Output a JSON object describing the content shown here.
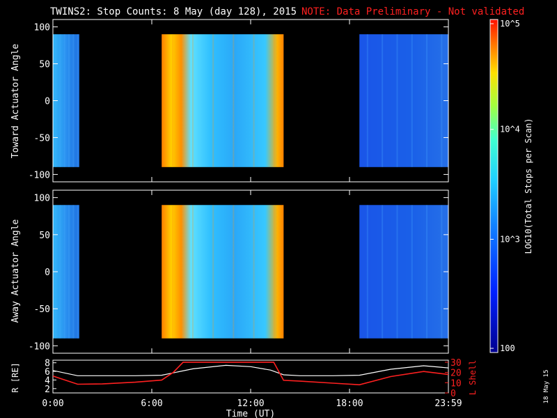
{
  "title": {
    "main": "TWINS2: Stop Counts:  8 May (day 128), 2015",
    "note": "NOTE: Data Preliminary - Not validated",
    "note_color": "#ff2020"
  },
  "side_stamp": "18 May 15",
  "chart_data": [
    {
      "type": "heatmap",
      "ylabel": "Toward Actuator Angle",
      "ylim": [
        -110,
        110
      ],
      "yticks": [
        "100",
        "50",
        "0",
        "-50",
        "-100"
      ],
      "xlim": [
        0,
        24
      ],
      "bands": [
        {
          "start": 0.0,
          "end": 1.6,
          "level": "low"
        },
        {
          "start": 1.6,
          "end": 6.6,
          "level": "no-data"
        },
        {
          "start": 6.6,
          "end": 14.0,
          "level": "high"
        },
        {
          "start": 14.0,
          "end": 18.6,
          "level": "no-data"
        },
        {
          "start": 18.6,
          "end": 24.0,
          "level": "low"
        }
      ]
    },
    {
      "type": "heatmap",
      "ylabel": "Away Actuator Angle",
      "ylim": [
        -110,
        110
      ],
      "yticks": [
        "100",
        "50",
        "0",
        "-50",
        "-100"
      ],
      "xlim": [
        0,
        24
      ],
      "bands": [
        {
          "start": 0.0,
          "end": 1.6,
          "level": "low"
        },
        {
          "start": 1.6,
          "end": 6.6,
          "level": "no-data"
        },
        {
          "start": 6.6,
          "end": 14.0,
          "level": "high"
        },
        {
          "start": 14.0,
          "end": 18.6,
          "level": "no-data"
        },
        {
          "start": 18.6,
          "end": 24.0,
          "level": "low"
        }
      ]
    },
    {
      "type": "line",
      "ylabel": "R [RE]",
      "y2label": "L Shell",
      "xlabel": "Time (UT)",
      "xticks": [
        "0:00",
        "6:00",
        "12:00",
        "18:00",
        "23:59"
      ],
      "yticks_left": [
        "8",
        "6",
        "4",
        "2"
      ],
      "yticks_right": [
        "30",
        "20",
        "10",
        "0"
      ],
      "series": [
        {
          "color": "#ffffff",
          "x": [
            0,
            1.5,
            3,
            5,
            6.6,
            8.5,
            10.5,
            12,
            13.2,
            14,
            15,
            17,
            18.6,
            20.5,
            22.5,
            24
          ],
          "y": [
            6.2,
            5.0,
            5.0,
            5.0,
            5.1,
            6.6,
            7.4,
            7.1,
            6.3,
            5.2,
            5.0,
            5.0,
            5.1,
            6.5,
            7.3,
            6.8
          ]
        },
        {
          "color": "#ff2020",
          "x": [
            0,
            1.5,
            3,
            5,
            6.6,
            7.3,
            7.9,
            13.4,
            14,
            15,
            17,
            18.6,
            20.5,
            22.5,
            24
          ],
          "y": [
            16.5,
            8.5,
            8.8,
            10.5,
            12.5,
            20,
            30,
            30,
            12.3,
            11.5,
            9.5,
            8.0,
            16,
            21,
            18
          ]
        }
      ]
    }
  ],
  "colorbar": {
    "label": "LOG10(Total Stops per Scan)",
    "ticks": [
      "10^5",
      "10^4",
      "10^3",
      "100"
    ]
  }
}
